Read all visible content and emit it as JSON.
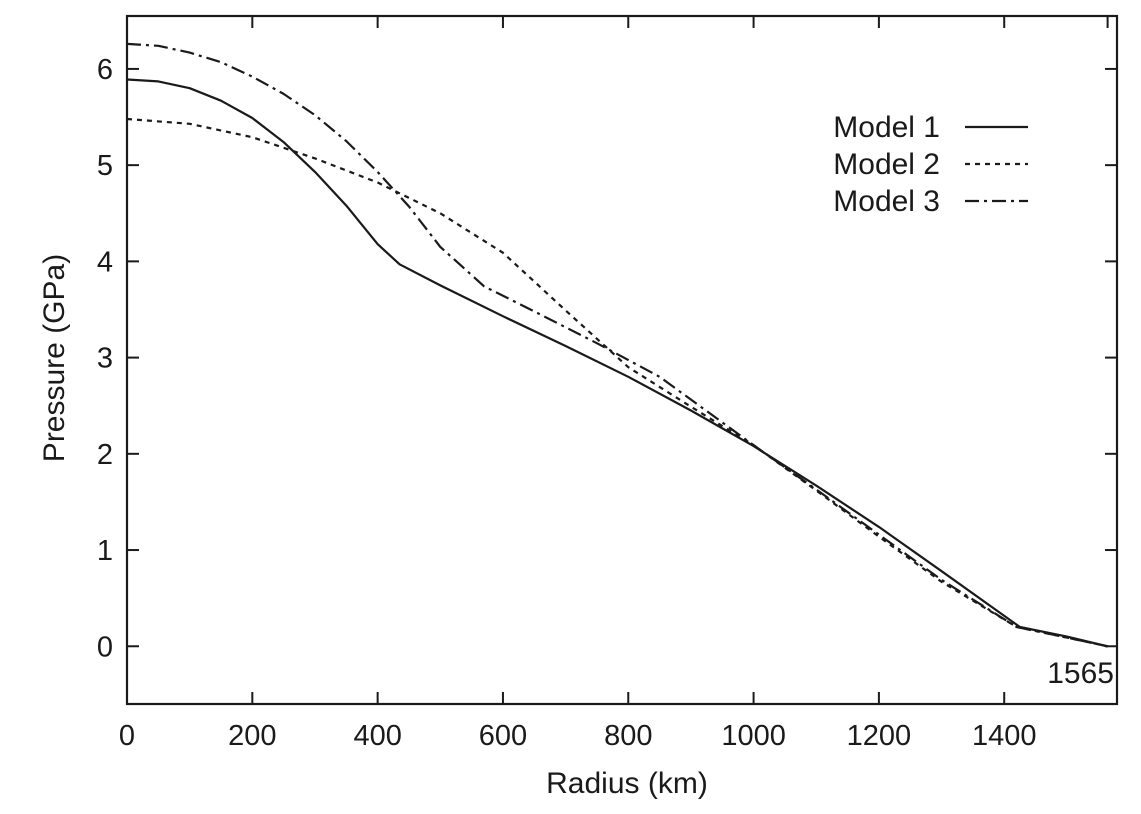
{
  "chart_data": {
    "type": "line",
    "title": "",
    "xlabel": "Radius (km)",
    "ylabel": "Pressure (GPa)",
    "xlim": [
      0,
      1580
    ],
    "ylim": [
      -0.6,
      6.55
    ],
    "xticks": [
      0,
      200,
      400,
      600,
      800,
      1000,
      1200,
      1400
    ],
    "yticks": [
      0,
      1,
      2,
      3,
      4,
      5,
      6
    ],
    "top_tick_marks": [
      0,
      200,
      400,
      600,
      800,
      1000,
      1200,
      1400,
      1565
    ],
    "grid": false,
    "legend_position": "top-right",
    "annotation": "1565",
    "series": [
      {
        "name": "Model 1",
        "dash": "solid",
        "x": [
          0,
          50,
          100,
          150,
          200,
          250,
          300,
          350,
          400,
          435,
          500,
          600,
          700,
          800,
          900,
          1000,
          1100,
          1200,
          1300,
          1425,
          1500,
          1565
        ],
        "y": [
          5.89,
          5.87,
          5.8,
          5.67,
          5.49,
          5.24,
          4.93,
          4.58,
          4.18,
          3.97,
          3.75,
          3.43,
          3.12,
          2.8,
          2.45,
          2.08,
          1.67,
          1.24,
          0.78,
          0.2,
          0.1,
          0.0
        ]
      },
      {
        "name": "Model 2",
        "dash": "dashed",
        "x": [
          0,
          100,
          200,
          300,
          400,
          500,
          600,
          700,
          800,
          900,
          1000,
          1100,
          1200,
          1300,
          1420,
          1500,
          1565
        ],
        "y": [
          5.48,
          5.43,
          5.29,
          5.07,
          4.82,
          4.5,
          4.09,
          3.49,
          2.9,
          2.49,
          2.09,
          1.62,
          1.14,
          0.67,
          0.2,
          0.09,
          0.0
        ]
      },
      {
        "name": "Model 3",
        "dash": "dashdot",
        "x": [
          0,
          50,
          100,
          150,
          200,
          250,
          300,
          350,
          400,
          450,
          500,
          570,
          650,
          750,
          850,
          1000,
          1100,
          1200,
          1300,
          1420,
          1500,
          1565
        ],
        "y": [
          6.26,
          6.24,
          6.17,
          6.07,
          5.92,
          5.74,
          5.52,
          5.25,
          4.93,
          4.57,
          4.15,
          3.74,
          3.48,
          3.15,
          2.8,
          2.09,
          1.63,
          1.16,
          0.69,
          0.2,
          0.09,
          0.0
        ]
      }
    ]
  }
}
